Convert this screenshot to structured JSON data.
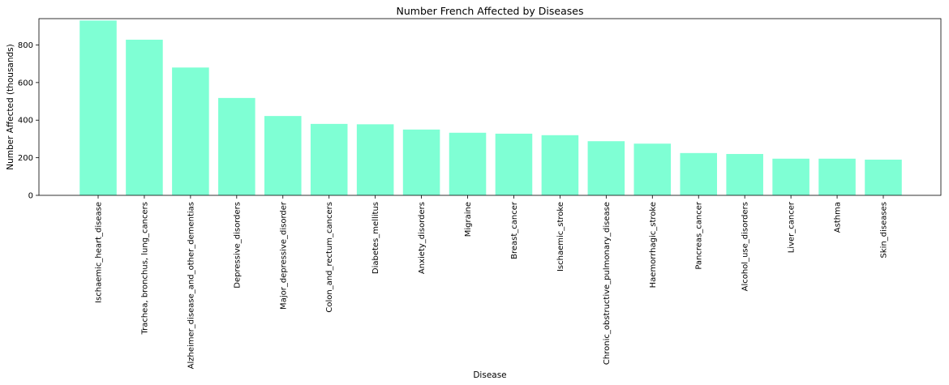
{
  "chart_data": {
    "type": "bar",
    "title": "Number French Affected by Diseases",
    "xlabel": "Disease",
    "ylabel": "Number Affected (thousands)",
    "ylim": [
      0,
      940
    ],
    "yticks": [
      0,
      200,
      400,
      600,
      800
    ],
    "bar_color": "#7fffd4",
    "grid": false,
    "categories": [
      "Ischaemic_heart_disease",
      "Trachea, bronchus, lung_cancers",
      "Alzheimer_disease_and_other_dementias",
      "Depressive_disorders",
      "Major_depressive_disorder",
      "Colon_and_rectum_cancers",
      "Diabetes_mellitus",
      "Anxiety_disorders",
      "Migraine",
      "Breast_cancer",
      "Ischaemic_stroke",
      "Chronic_obstructive_pulmonary_disease",
      "Haemorrhagic_stroke",
      "Pancreas_cancer",
      "Alcohol_use_disorders",
      "Liver_cancer",
      "Asthma",
      "Skin_diseases"
    ],
    "values": [
      930,
      828,
      680,
      518,
      422,
      380,
      378,
      350,
      333,
      328,
      320,
      288,
      275,
      225,
      220,
      195,
      195,
      190
    ]
  }
}
